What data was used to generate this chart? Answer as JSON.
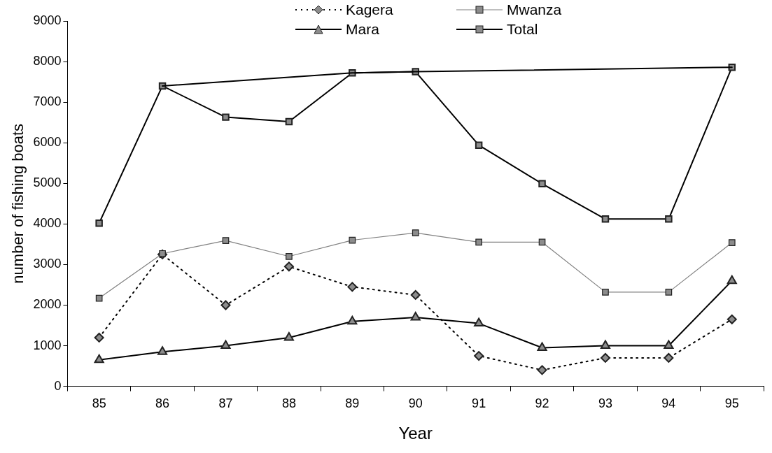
{
  "chart_data": {
    "type": "line",
    "xlabel": "Year",
    "ylabel": "number of fishing boats",
    "categories": [
      "85",
      "86",
      "87",
      "88",
      "89",
      "90",
      "91",
      "92",
      "93",
      "94",
      "95"
    ],
    "ylim": [
      0,
      9000
    ],
    "yticks": [
      0,
      1000,
      2000,
      3000,
      4000,
      5000,
      6000,
      7000,
      8000,
      9000
    ],
    "grid": false,
    "legend": "top",
    "series": [
      {
        "name": "Kagera",
        "color": "#000000",
        "marker": "diamond",
        "line_style": "dotted",
        "values": [
          1200,
          3250,
          2000,
          2950,
          2450,
          2250,
          750,
          400,
          700,
          700,
          1650
        ]
      },
      {
        "name": "Mwanza",
        "color": "#808080",
        "marker": "square",
        "line_style": "solid",
        "values": [
          2170,
          3270,
          3590,
          3200,
          3600,
          3780,
          3550,
          3550,
          2320,
          2320,
          3540
        ]
      },
      {
        "name": "Mara",
        "color": "#000000",
        "marker": "triangle",
        "line_style": "solid",
        "values": [
          650,
          850,
          1000,
          1200,
          1600,
          1700,
          1550,
          950,
          1000,
          1000,
          2600
        ]
      },
      {
        "name": "Total",
        "color": "#000000",
        "marker": "square",
        "line_style": "solid",
        "values": [
          4020,
          7400,
          6630,
          6520,
          7720,
          7750,
          5940,
          4990,
          4120,
          4120,
          7860
        ]
      },
      {
        "color": "#000000",
        "marker": "none",
        "line_style": "solid",
        "x": [
          "86",
          "89",
          "90",
          "95"
        ],
        "values": [
          7400,
          7720,
          7750,
          7860
        ]
      }
    ]
  }
}
